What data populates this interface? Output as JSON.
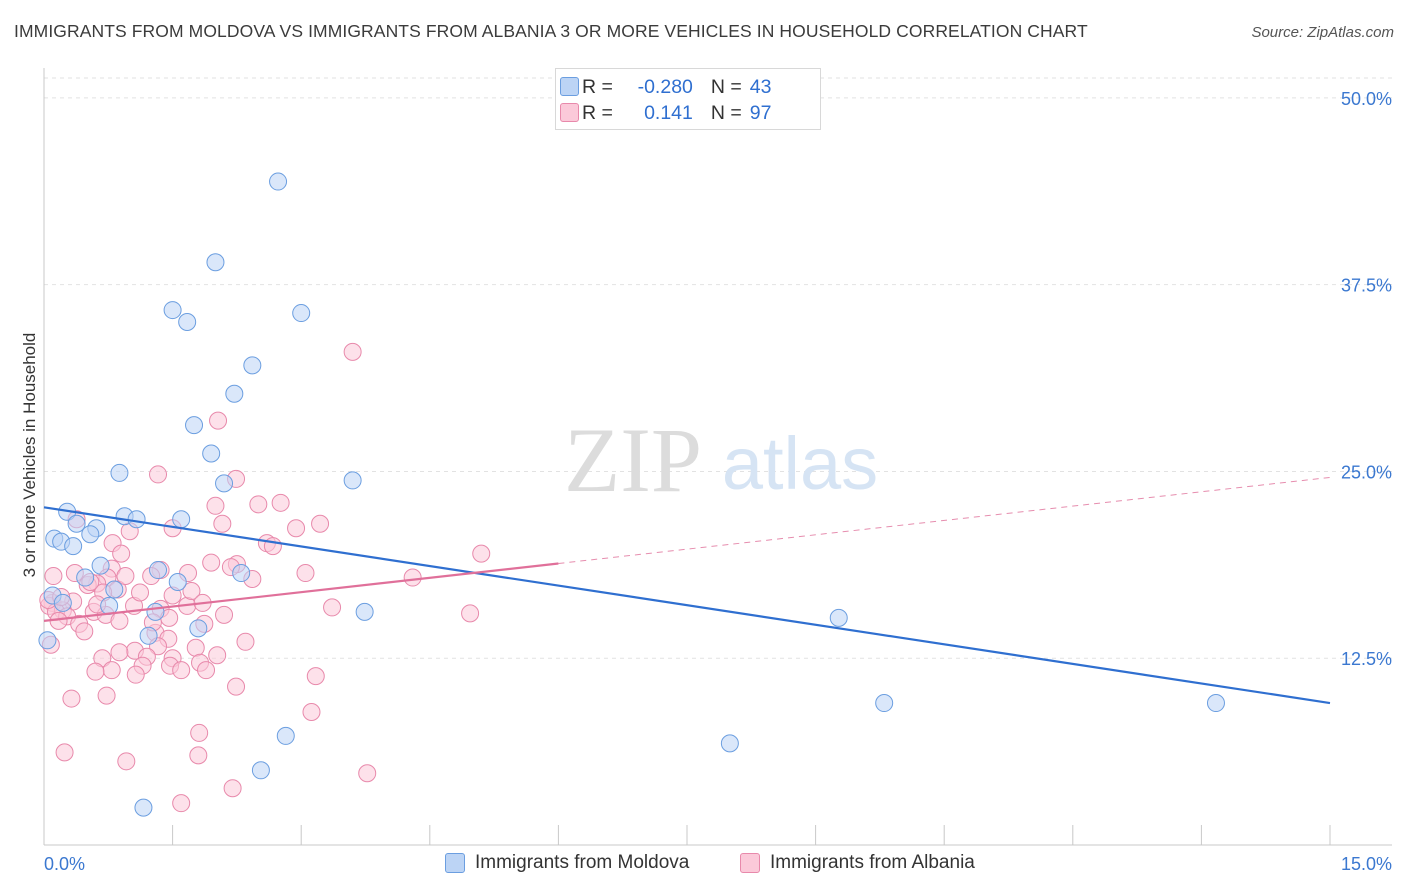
{
  "title": "IMMIGRANTS FROM MOLDOVA VS IMMIGRANTS FROM ALBANIA 3 OR MORE VEHICLES IN HOUSEHOLD CORRELATION CHART",
  "source": "Source: ZipAtlas.com",
  "watermark": {
    "zip": "ZIP",
    "atlas": "atlas"
  },
  "stats": [
    {
      "r_label": "R =",
      "r_value": "-0.280",
      "n_label": "N =",
      "n_value": "43",
      "color": "#6b9ee0",
      "fill": "#bcd4f5"
    },
    {
      "r_label": "R =",
      "r_value": "0.141",
      "n_label": "N =",
      "n_value": "97",
      "color": "#e889ab",
      "fill": "#fbc9d9"
    }
  ],
  "legend": [
    {
      "label": "Immigrants from Moldova",
      "color": "#6b9ee0",
      "fill": "#bcd4f5"
    },
    {
      "label": "Immigrants from Albania",
      "color": "#e889ab",
      "fill": "#fbc9d9"
    }
  ],
  "chart_data": {
    "type": "scatter",
    "title": "IMMIGRANTS FROM MOLDOVA VS IMMIGRANTS FROM ALBANIA 3 OR MORE VEHICLES IN HOUSEHOLD CORRELATION CHART",
    "xlabel": "",
    "ylabel": "3 or more Vehicles in Household",
    "xlim": [
      0,
      15
    ],
    "ylim": [
      0,
      52
    ],
    "x_tick_labels": [
      "0.0%",
      "15.0%"
    ],
    "y_ticks": [
      12.5,
      25.0,
      37.5,
      50.0
    ],
    "y_tick_labels": [
      "12.5%",
      "25.0%",
      "37.5%",
      "50.0%"
    ],
    "grid": true,
    "legend_position": "bottom-center",
    "series": [
      {
        "name": "Immigrants from Moldova",
        "color": "#6b9ee0",
        "fill": "#bcd4f5",
        "trend": {
          "x": [
            0,
            15
          ],
          "y": [
            22.6,
            9.5
          ],
          "dashed_from": null
        },
        "points": [
          [
            2.73,
            44.4
          ],
          [
            2.0,
            39.0
          ],
          [
            1.5,
            35.8
          ],
          [
            3.0,
            35.6
          ],
          [
            1.67,
            35.0
          ],
          [
            2.43,
            32.1
          ],
          [
            2.22,
            30.2
          ],
          [
            1.75,
            28.1
          ],
          [
            1.95,
            26.2
          ],
          [
            0.88,
            24.9
          ],
          [
            3.6,
            24.4
          ],
          [
            2.1,
            24.2
          ],
          [
            0.27,
            22.3
          ],
          [
            0.94,
            22.0
          ],
          [
            1.08,
            21.8
          ],
          [
            1.6,
            21.8
          ],
          [
            0.38,
            21.5
          ],
          [
            0.61,
            21.2
          ],
          [
            0.54,
            20.8
          ],
          [
            0.12,
            20.5
          ],
          [
            0.2,
            20.3
          ],
          [
            0.34,
            20.0
          ],
          [
            0.66,
            18.7
          ],
          [
            1.33,
            18.4
          ],
          [
            2.3,
            18.2
          ],
          [
            0.48,
            17.9
          ],
          [
            1.56,
            17.6
          ],
          [
            0.82,
            17.1
          ],
          [
            0.1,
            16.7
          ],
          [
            0.76,
            16.0
          ],
          [
            1.3,
            15.6
          ],
          [
            3.74,
            15.6
          ],
          [
            9.27,
            15.2
          ],
          [
            1.8,
            14.5
          ],
          [
            1.22,
            14.0
          ],
          [
            0.04,
            13.7
          ],
          [
            9.8,
            9.5
          ],
          [
            13.67,
            9.5
          ],
          [
            2.82,
            7.3
          ],
          [
            8.0,
            6.8
          ],
          [
            2.53,
            5.0
          ],
          [
            1.16,
            2.5
          ],
          [
            0.22,
            16.2
          ]
        ]
      },
      {
        "name": "Immigrants from Albania",
        "color": "#e889ab",
        "fill": "#fbc9d9",
        "trend": {
          "x": [
            0,
            15
          ],
          "y": [
            15.0,
            24.6
          ],
          "dashed_from": 6.0
        },
        "points": [
          [
            3.6,
            33.0
          ],
          [
            2.03,
            28.4
          ],
          [
            1.33,
            24.8
          ],
          [
            2.24,
            24.5
          ],
          [
            2.76,
            22.9
          ],
          [
            2.5,
            22.8
          ],
          [
            2.0,
            22.7
          ],
          [
            0.38,
            21.8
          ],
          [
            3.22,
            21.5
          ],
          [
            2.08,
            21.5
          ],
          [
            2.94,
            21.2
          ],
          [
            1.5,
            21.2
          ],
          [
            1.0,
            21.0
          ],
          [
            0.8,
            20.2
          ],
          [
            2.6,
            20.2
          ],
          [
            5.1,
            19.5
          ],
          [
            0.9,
            19.5
          ],
          [
            1.95,
            18.9
          ],
          [
            2.25,
            18.8
          ],
          [
            2.18,
            18.6
          ],
          [
            0.79,
            18.5
          ],
          [
            1.36,
            18.4
          ],
          [
            1.68,
            18.2
          ],
          [
            1.25,
            18.0
          ],
          [
            3.05,
            18.2
          ],
          [
            4.3,
            17.9
          ],
          [
            2.43,
            17.8
          ],
          [
            0.74,
            17.9
          ],
          [
            0.62,
            17.5
          ],
          [
            0.51,
            17.4
          ],
          [
            0.86,
            17.1
          ],
          [
            0.69,
            16.9
          ],
          [
            1.5,
            16.7
          ],
          [
            0.34,
            16.3
          ],
          [
            0.1,
            16.2
          ],
          [
            0.06,
            16.0
          ],
          [
            1.05,
            16.0
          ],
          [
            1.67,
            16.0
          ],
          [
            3.36,
            15.9
          ],
          [
            1.36,
            15.8
          ],
          [
            0.22,
            15.7
          ],
          [
            0.14,
            15.6
          ],
          [
            0.58,
            15.6
          ],
          [
            0.72,
            15.4
          ],
          [
            0.27,
            15.3
          ],
          [
            4.97,
            15.5
          ],
          [
            2.1,
            15.4
          ],
          [
            1.46,
            15.2
          ],
          [
            0.17,
            15.0
          ],
          [
            0.88,
            15.0
          ],
          [
            0.41,
            14.8
          ],
          [
            1.87,
            14.8
          ],
          [
            0.47,
            14.3
          ],
          [
            1.3,
            14.2
          ],
          [
            1.45,
            13.8
          ],
          [
            2.35,
            13.6
          ],
          [
            0.08,
            13.4
          ],
          [
            1.33,
            13.3
          ],
          [
            1.77,
            13.2
          ],
          [
            1.06,
            13.0
          ],
          [
            0.88,
            12.9
          ],
          [
            2.02,
            12.7
          ],
          [
            0.68,
            12.5
          ],
          [
            1.2,
            12.6
          ],
          [
            1.5,
            12.5
          ],
          [
            1.82,
            12.2
          ],
          [
            1.15,
            12.0
          ],
          [
            1.47,
            12.0
          ],
          [
            0.79,
            11.7
          ],
          [
            1.6,
            11.7
          ],
          [
            1.89,
            11.7
          ],
          [
            0.6,
            11.6
          ],
          [
            1.07,
            11.4
          ],
          [
            3.17,
            11.3
          ],
          [
            2.24,
            10.6
          ],
          [
            0.73,
            10.0
          ],
          [
            0.32,
            9.8
          ],
          [
            3.12,
            8.9
          ],
          [
            1.81,
            7.5
          ],
          [
            0.24,
            6.2
          ],
          [
            1.8,
            6.0
          ],
          [
            0.96,
            5.6
          ],
          [
            3.77,
            4.8
          ],
          [
            2.2,
            3.8
          ],
          [
            1.6,
            2.8
          ],
          [
            0.05,
            16.4
          ],
          [
            1.12,
            16.9
          ],
          [
            0.54,
            17.6
          ],
          [
            0.95,
            18.0
          ],
          [
            1.72,
            17.0
          ],
          [
            2.67,
            20.0
          ],
          [
            0.2,
            16.6
          ],
          [
            0.36,
            18.2
          ],
          [
            1.27,
            14.9
          ],
          [
            0.62,
            16.1
          ],
          [
            1.85,
            16.2
          ],
          [
            0.11,
            18.0
          ]
        ]
      }
    ]
  }
}
